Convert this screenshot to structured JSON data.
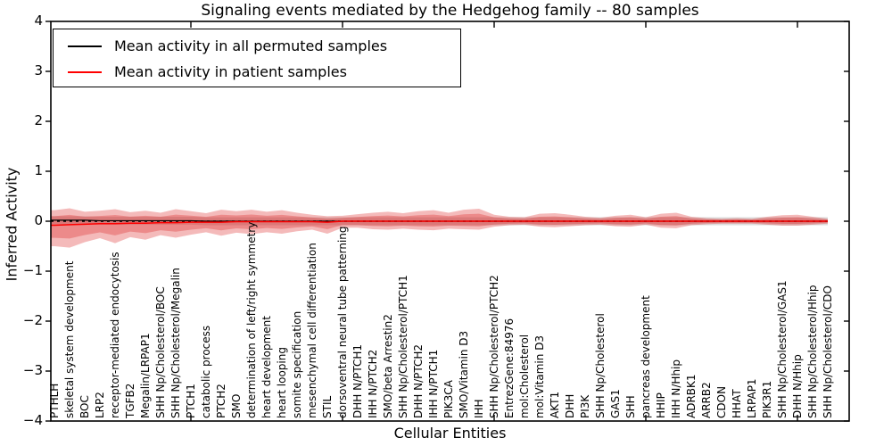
{
  "title": "Signaling events mediated by the Hedgehog family -- 80 samples",
  "axes": {
    "ylabel": "Inferred Activity",
    "xlabel": "Cellular Entities",
    "ytick_labels": [
      "4",
      "3",
      "2",
      "1",
      "0",
      "−1",
      "−2",
      "−3",
      "−4"
    ],
    "ytick_values": [
      4,
      3,
      2,
      1,
      0,
      -1,
      -2,
      -3,
      -4
    ]
  },
  "legend": {
    "entries": [
      {
        "label": "Mean activity in all permuted samples",
        "color": "#000000"
      },
      {
        "label": "Mean activity in patient samples",
        "color": "#ff0000"
      }
    ]
  },
  "colors": {
    "frame": "#000000",
    "patient_line": "#ff0000",
    "permuted_line": "#000000",
    "patient_band_fill": "rgba(220,25,25,0.30)",
    "permuted_band_fill": "rgba(120,120,120,0.25)",
    "background": "#ffffff"
  },
  "chart_data": {
    "type": "line",
    "title": "Signaling events mediated by the Hedgehog family -- 80 samples",
    "xlabel": "Cellular Entities",
    "ylabel": "Inferred Activity",
    "ylim": [
      -4,
      4
    ],
    "grid": false,
    "legend_position": "upper left",
    "n_samples": 80,
    "categories": [
      "PTHLH",
      "skeletal system development",
      "BOC",
      "LRP2",
      "receptor-mediated endocytosis",
      "TGFB2",
      "Megalin/LRPAP1",
      "SHH Np/Cholesterol/BOC",
      "SHH Np/Cholesterol/Megalin",
      "PTCH1",
      "catabolic process",
      "PTCH2",
      "SMO",
      "determination of left/right symmetry",
      "heart development",
      "heart looping",
      "somite specification",
      "mesenchymal cell differentiation",
      "STIL",
      "dorsoventral neural tube patterning",
      "DHH N/PTCH1",
      "IHH N/PTCH2",
      "SMO/beta Arrestin2",
      "SHH Np/Cholesterol/PTCH1",
      "DHH N/PTCH2",
      "IHH N/PTCH1",
      "PIK3CA",
      "SMO/Vitamin D3",
      "IHH",
      "SHH Np/Cholesterol/PTCH2",
      "EntrezGene:84976",
      "mol:Cholesterol",
      "mol:Vitamin D3",
      "AKT1",
      "DHH",
      "PI3K",
      "SHH Np/Cholesterol",
      "GAS1",
      "SHH",
      "pancreas development",
      "HHIP",
      "IHH N/Hhip",
      "ADRBK1",
      "ARRB2",
      "CDON",
      "HHAT",
      "LRPAP1",
      "PIK3R1",
      "SHH Np/Cholesterol/GAS1",
      "DHH N/Hhip",
      "SHH Np/Cholesterol/Hhip",
      "SHH Np/Cholesterol/CDO"
    ],
    "series": [
      {
        "name": "Mean activity in all permuted samples",
        "color": "#000000",
        "values": [
          0.02,
          0.02,
          0.02,
          0.01,
          0.01,
          0.01,
          0.01,
          0.01,
          0.01,
          0.01,
          0,
          0,
          0,
          0,
          0,
          0,
          0,
          0,
          0,
          0,
          0,
          0,
          0,
          0,
          0,
          0,
          0,
          0,
          0,
          0,
          0,
          0,
          0,
          0,
          0,
          0,
          0,
          0,
          0,
          0,
          0,
          0,
          0,
          0,
          0,
          0,
          0,
          0,
          0,
          0,
          0,
          0
        ]
      },
      {
        "name": "Mean activity in patient samples",
        "color": "#ff0000",
        "values": [
          -0.08,
          -0.07,
          -0.06,
          -0.05,
          -0.05,
          -0.04,
          -0.04,
          -0.03,
          -0.03,
          -0.02,
          -0.02,
          -0.02,
          -0.01,
          -0.01,
          -0.01,
          -0.01,
          -0.01,
          -0.01,
          -0.02,
          0,
          0,
          0,
          0,
          0,
          0,
          0,
          0,
          0,
          0,
          0,
          0,
          0,
          0,
          0,
          0,
          0,
          0,
          0,
          0,
          0,
          0,
          0,
          0,
          0,
          0,
          0,
          0,
          0,
          0,
          0,
          0,
          0
        ]
      }
    ],
    "bands": {
      "patient_upper": [
        0.3,
        0.33,
        0.25,
        0.26,
        0.29,
        0.22,
        0.25,
        0.2,
        0.27,
        0.22,
        0.18,
        0.25,
        0.21,
        0.24,
        0.2,
        0.23,
        0.18,
        0.14,
        0.12,
        0.11,
        0.14,
        0.17,
        0.19,
        0.16,
        0.2,
        0.22,
        0.17,
        0.23,
        0.25,
        0.13,
        0.09,
        0.08,
        0.15,
        0.16,
        0.13,
        0.09,
        0.07,
        0.11,
        0.13,
        0.08,
        0.15,
        0.17,
        0.09,
        0.06,
        0.05,
        0.06,
        0.05,
        0.09,
        0.12,
        0.13,
        0.09,
        0.05
      ],
      "patient_lower": [
        0.42,
        0.46,
        0.36,
        0.29,
        0.39,
        0.28,
        0.33,
        0.25,
        0.3,
        0.25,
        0.2,
        0.27,
        0.22,
        0.25,
        0.21,
        0.24,
        0.19,
        0.16,
        0.23,
        0.13,
        0.13,
        0.16,
        0.17,
        0.15,
        0.17,
        0.18,
        0.15,
        0.16,
        0.17,
        0.11,
        0.08,
        0.07,
        0.11,
        0.12,
        0.1,
        0.08,
        0.07,
        0.1,
        0.11,
        0.07,
        0.13,
        0.14,
        0.08,
        0.06,
        0.05,
        0.05,
        0.05,
        0.07,
        0.09,
        0.09,
        0.07,
        0.05
      ],
      "inner_ratio": 0.6,
      "permuted_halfwidth": 0.08
    },
    "x_major_tick_every": 10,
    "zero_line": {
      "value": 0,
      "style": "dotted"
    }
  }
}
